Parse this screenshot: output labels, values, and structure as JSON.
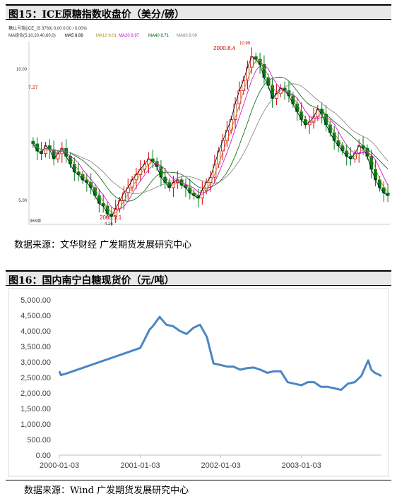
{
  "figure15": {
    "title": "图15：ICE原糖指数收盘价（美分/磅）",
    "source": "数据来源：文华财经 广发期货发展研究中心",
    "header_line": "糖11号指(ICE_IS 3760)   0.00   0.00 / 0.00%",
    "ma_legend": [
      {
        "text": "MA组合(5,10,20,40,60,0)",
        "color": "#333333"
      },
      {
        "text": "MA5 8.89",
        "color": "#000000"
      },
      {
        "text": "MA10 9.01",
        "color": "#b8860b"
      },
      {
        "text": "MA20 8.97",
        "color": "#cc00cc"
      },
      {
        "text": "MA40 8.71",
        "color": "#006400"
      },
      {
        "text": "MA60 8.09",
        "color": "#808080"
      }
    ],
    "y_ticks": [
      "10.00",
      "5.00"
    ],
    "annotations": [
      "7.27",
      "2000.3.1",
      "4.26",
      "2000.8.4",
      "10.99"
    ],
    "footer_label": "365周"
  },
  "figure16": {
    "title": "图16：国内南宁白糖现货价（元/吨）",
    "source": "数据来源：Wind 广发期货发展研究中心"
  },
  "chart_data": [
    {
      "type": "candlestick",
      "title": "图15：ICE原糖指数收盘价（美分/磅）",
      "unit": "美分/磅",
      "y_ticks": [
        10.0,
        5.0
      ],
      "ylim": [
        4.2,
        11.2
      ],
      "annotations": [
        {
          "label": "7.27",
          "value": 7.27
        },
        {
          "label": "2000.3.1",
          "value": 4.26
        },
        {
          "label": "2000.8.4",
          "value": 10.99
        },
        {
          "label": "10.99",
          "value": 10.99
        }
      ],
      "weekly_close": [
        7.27,
        7.0,
        6.9,
        7.2,
        7.05,
        6.7,
        6.9,
        7.1,
        6.8,
        6.5,
        6.2,
        6.1,
        5.9,
        5.8,
        5.6,
        5.3,
        5.0,
        4.9,
        4.6,
        4.5,
        4.8,
        5.1,
        5.4,
        5.6,
        5.9,
        6.1,
        6.3,
        6.5,
        6.7,
        6.6,
        6.4,
        6.0,
        5.8,
        5.6,
        5.8,
        5.9,
        5.7,
        5.6,
        5.4,
        5.3,
        5.2,
        5.5,
        5.8,
        6.0,
        6.5,
        7.0,
        7.4,
        7.8,
        8.2,
        8.8,
        9.3,
        9.7,
        10.2,
        10.6,
        10.5,
        10.3,
        9.8,
        9.5,
        9.0,
        9.2,
        9.4,
        9.3,
        9.1,
        8.8,
        8.5,
        8.2,
        8.0,
        8.1,
        8.3,
        8.6,
        8.4,
        8.0,
        7.7,
        7.4,
        7.2,
        7.0,
        6.8,
        6.7,
        6.9,
        7.2,
        7.1,
        6.8,
        6.3,
        5.9,
        5.6,
        5.4,
        5.3
      ]
    },
    {
      "type": "line",
      "title": "图16：国内南宁白糖现货价（元/吨）",
      "xlabel": "",
      "ylabel": "",
      "x_tick_labels": [
        "2000-01-03",
        "2001-01-03",
        "2002-01-03",
        "2003-01-03"
      ],
      "y_tick_labels": [
        "5,000.00",
        "4,500.00",
        "4,000.00",
        "3,500.00",
        "3,000.00",
        "2,500.00",
        "2,000.00",
        "1,500.00",
        "1,000.00",
        "500.00",
        "0.00"
      ],
      "ylim": [
        0,
        5000
      ],
      "grid": false,
      "color": "#4a86c5",
      "series": [
        {
          "x": [
            "2000-01-03",
            "2000-01-10",
            "2000-02-01",
            "2001-01-03",
            "2001-02-01",
            "2001-02-15",
            "2001-03-01",
            "2001-04-01",
            "2001-05-01",
            "2001-06-01",
            "2001-07-01",
            "2001-08-01",
            "2001-09-01",
            "2001-10-01",
            "2001-11-01",
            "2001-12-01",
            "2002-01-03",
            "2002-02-01",
            "2002-03-01",
            "2002-04-01",
            "2002-05-01",
            "2002-06-01",
            "2002-07-01",
            "2002-08-01",
            "2002-09-01",
            "2002-10-01",
            "2002-11-01",
            "2002-12-01",
            "2003-01-03",
            "2003-02-01",
            "2003-03-01",
            "2003-04-01",
            "2003-05-01",
            "2003-06-01",
            "2003-07-01",
            "2003-08-01",
            "2003-09-01",
            "2003-10-01",
            "2003-11-01",
            "2003-11-15",
            "2003-12-01",
            "2003-12-31"
          ],
          "y": [
            2700,
            2580,
            2620,
            3450,
            3850,
            4050,
            4150,
            4450,
            4200,
            4150,
            4000,
            3900,
            4100,
            4200,
            3800,
            2950,
            2900,
            2850,
            2850,
            2750,
            2800,
            2820,
            2750,
            2650,
            2700,
            2700,
            2350,
            2300,
            2250,
            2350,
            2350,
            2200,
            2200,
            2150,
            2100,
            2300,
            2350,
            2550,
            3050,
            2750,
            2650,
            2550
          ]
        }
      ]
    }
  ]
}
